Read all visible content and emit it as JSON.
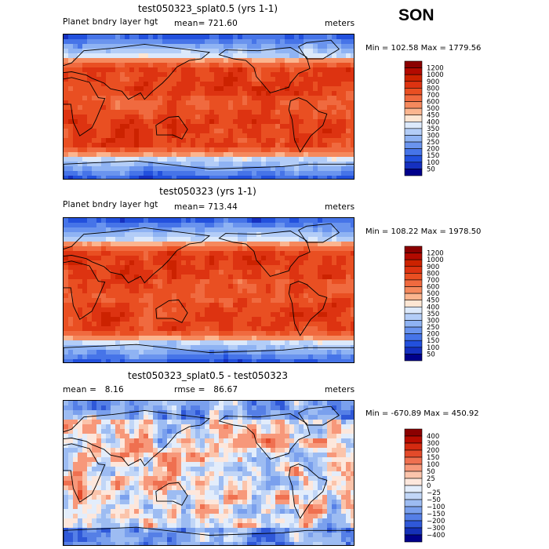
{
  "season": "SON",
  "chart_data": [
    {
      "type": "heatmap",
      "title": "test050323_splat0.5 (yrs 1-1)",
      "variable": "Planet bndry layer hgt",
      "stat_text": "mean= 721.60",
      "units": "meters",
      "minmax_text": "Min = 102.58 Max = 1779.56",
      "mean": 721.6,
      "min": 102.58,
      "max": 1779.56,
      "levels": [
        "1200",
        "1000",
        "900",
        "800",
        "700",
        "600",
        "500",
        "450",
        "400",
        "350",
        "300",
        "250",
        "200",
        "150",
        "100",
        "50"
      ],
      "colors": [
        "#8b0000",
        "#b30a00",
        "#cc2200",
        "#dd3311",
        "#e94f22",
        "#f06a3f",
        "#f5895d",
        "#fbb58f",
        "#fde6d3",
        "#dce9fb",
        "#b3cdf7",
        "#8fb3f3",
        "#6a94ee",
        "#4674e8",
        "#2250dd",
        "#1530c0",
        "#00008b"
      ]
    },
    {
      "type": "heatmap",
      "title": "test050323 (yrs 1-1)",
      "variable": "Planet bndry layer hgt",
      "stat_text": "mean= 713.44",
      "units": "meters",
      "minmax_text": "Min = 108.22 Max = 1978.50",
      "mean": 713.44,
      "min": 108.22,
      "max": 1978.5,
      "levels": [
        "1200",
        "1000",
        "900",
        "800",
        "700",
        "600",
        "500",
        "450",
        "400",
        "350",
        "300",
        "250",
        "200",
        "150",
        "100",
        "50"
      ],
      "colors": [
        "#8b0000",
        "#b30a00",
        "#cc2200",
        "#dd3311",
        "#e94f22",
        "#f06a3f",
        "#f5895d",
        "#fbb58f",
        "#fde6d3",
        "#dce9fb",
        "#b3cdf7",
        "#8fb3f3",
        "#6a94ee",
        "#4674e8",
        "#2250dd",
        "#1530c0",
        "#00008b"
      ]
    },
    {
      "type": "heatmap",
      "title": "test050323_splat0.5 - test050323",
      "mean_text": "mean =   8.16",
      "rmse_text": "rmse =   86.67",
      "units": "meters",
      "minmax_text": "Min = -670.89 Max = 450.92",
      "mean": 8.16,
      "rmse": 86.67,
      "min": -670.89,
      "max": 450.92,
      "levels": [
        "400",
        "300",
        "200",
        "150",
        "100",
        "50",
        "25",
        "0",
        "−25",
        "−50",
        "−100",
        "−150",
        "−200",
        "−300",
        "−400"
      ],
      "colors": [
        "#8b0000",
        "#b80c00",
        "#d42a10",
        "#e34a2a",
        "#ef7050",
        "#f7987a",
        "#fbc4ab",
        "#fde7dc",
        "#e3edfb",
        "#c1d6f7",
        "#9dbcf2",
        "#7aa0ed",
        "#557fe6",
        "#2f58d8",
        "#1530b8",
        "#00008b"
      ]
    }
  ]
}
